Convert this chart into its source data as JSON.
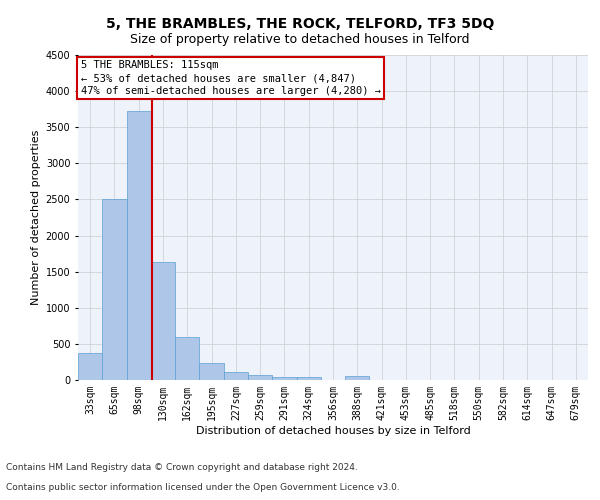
{
  "title": "5, THE BRAMBLES, THE ROCK, TELFORD, TF3 5DQ",
  "subtitle": "Size of property relative to detached houses in Telford",
  "xlabel": "Distribution of detached houses by size in Telford",
  "ylabel": "Number of detached properties",
  "bar_color": "#aec6e8",
  "bar_edge_color": "#5a9fd4",
  "categories": [
    "33sqm",
    "65sqm",
    "98sqm",
    "130sqm",
    "162sqm",
    "195sqm",
    "227sqm",
    "259sqm",
    "291sqm",
    "324sqm",
    "356sqm",
    "388sqm",
    "421sqm",
    "453sqm",
    "485sqm",
    "518sqm",
    "550sqm",
    "582sqm",
    "614sqm",
    "647sqm",
    "679sqm"
  ],
  "values": [
    370,
    2510,
    3720,
    1630,
    590,
    230,
    110,
    70,
    35,
    40,
    0,
    60,
    0,
    0,
    0,
    0,
    0,
    0,
    0,
    0,
    0
  ],
  "ylim": [
    0,
    4500
  ],
  "yticks": [
    0,
    500,
    1000,
    1500,
    2000,
    2500,
    3000,
    3500,
    4000,
    4500
  ],
  "vline_color": "#cc0000",
  "annotation_text": "5 THE BRAMBLES: 115sqm\n← 53% of detached houses are smaller (4,847)\n47% of semi-detached houses are larger (4,280) →",
  "footer_line1": "Contains HM Land Registry data © Crown copyright and database right 2024.",
  "footer_line2": "Contains public sector information licensed under the Open Government Licence v3.0.",
  "background_color": "#eef2fb",
  "grid_color": "#cccccc",
  "title_fontsize": 10,
  "subtitle_fontsize": 9,
  "axis_label_fontsize": 8,
  "tick_fontsize": 7,
  "annotation_fontsize": 7.5,
  "footer_fontsize": 6.5
}
